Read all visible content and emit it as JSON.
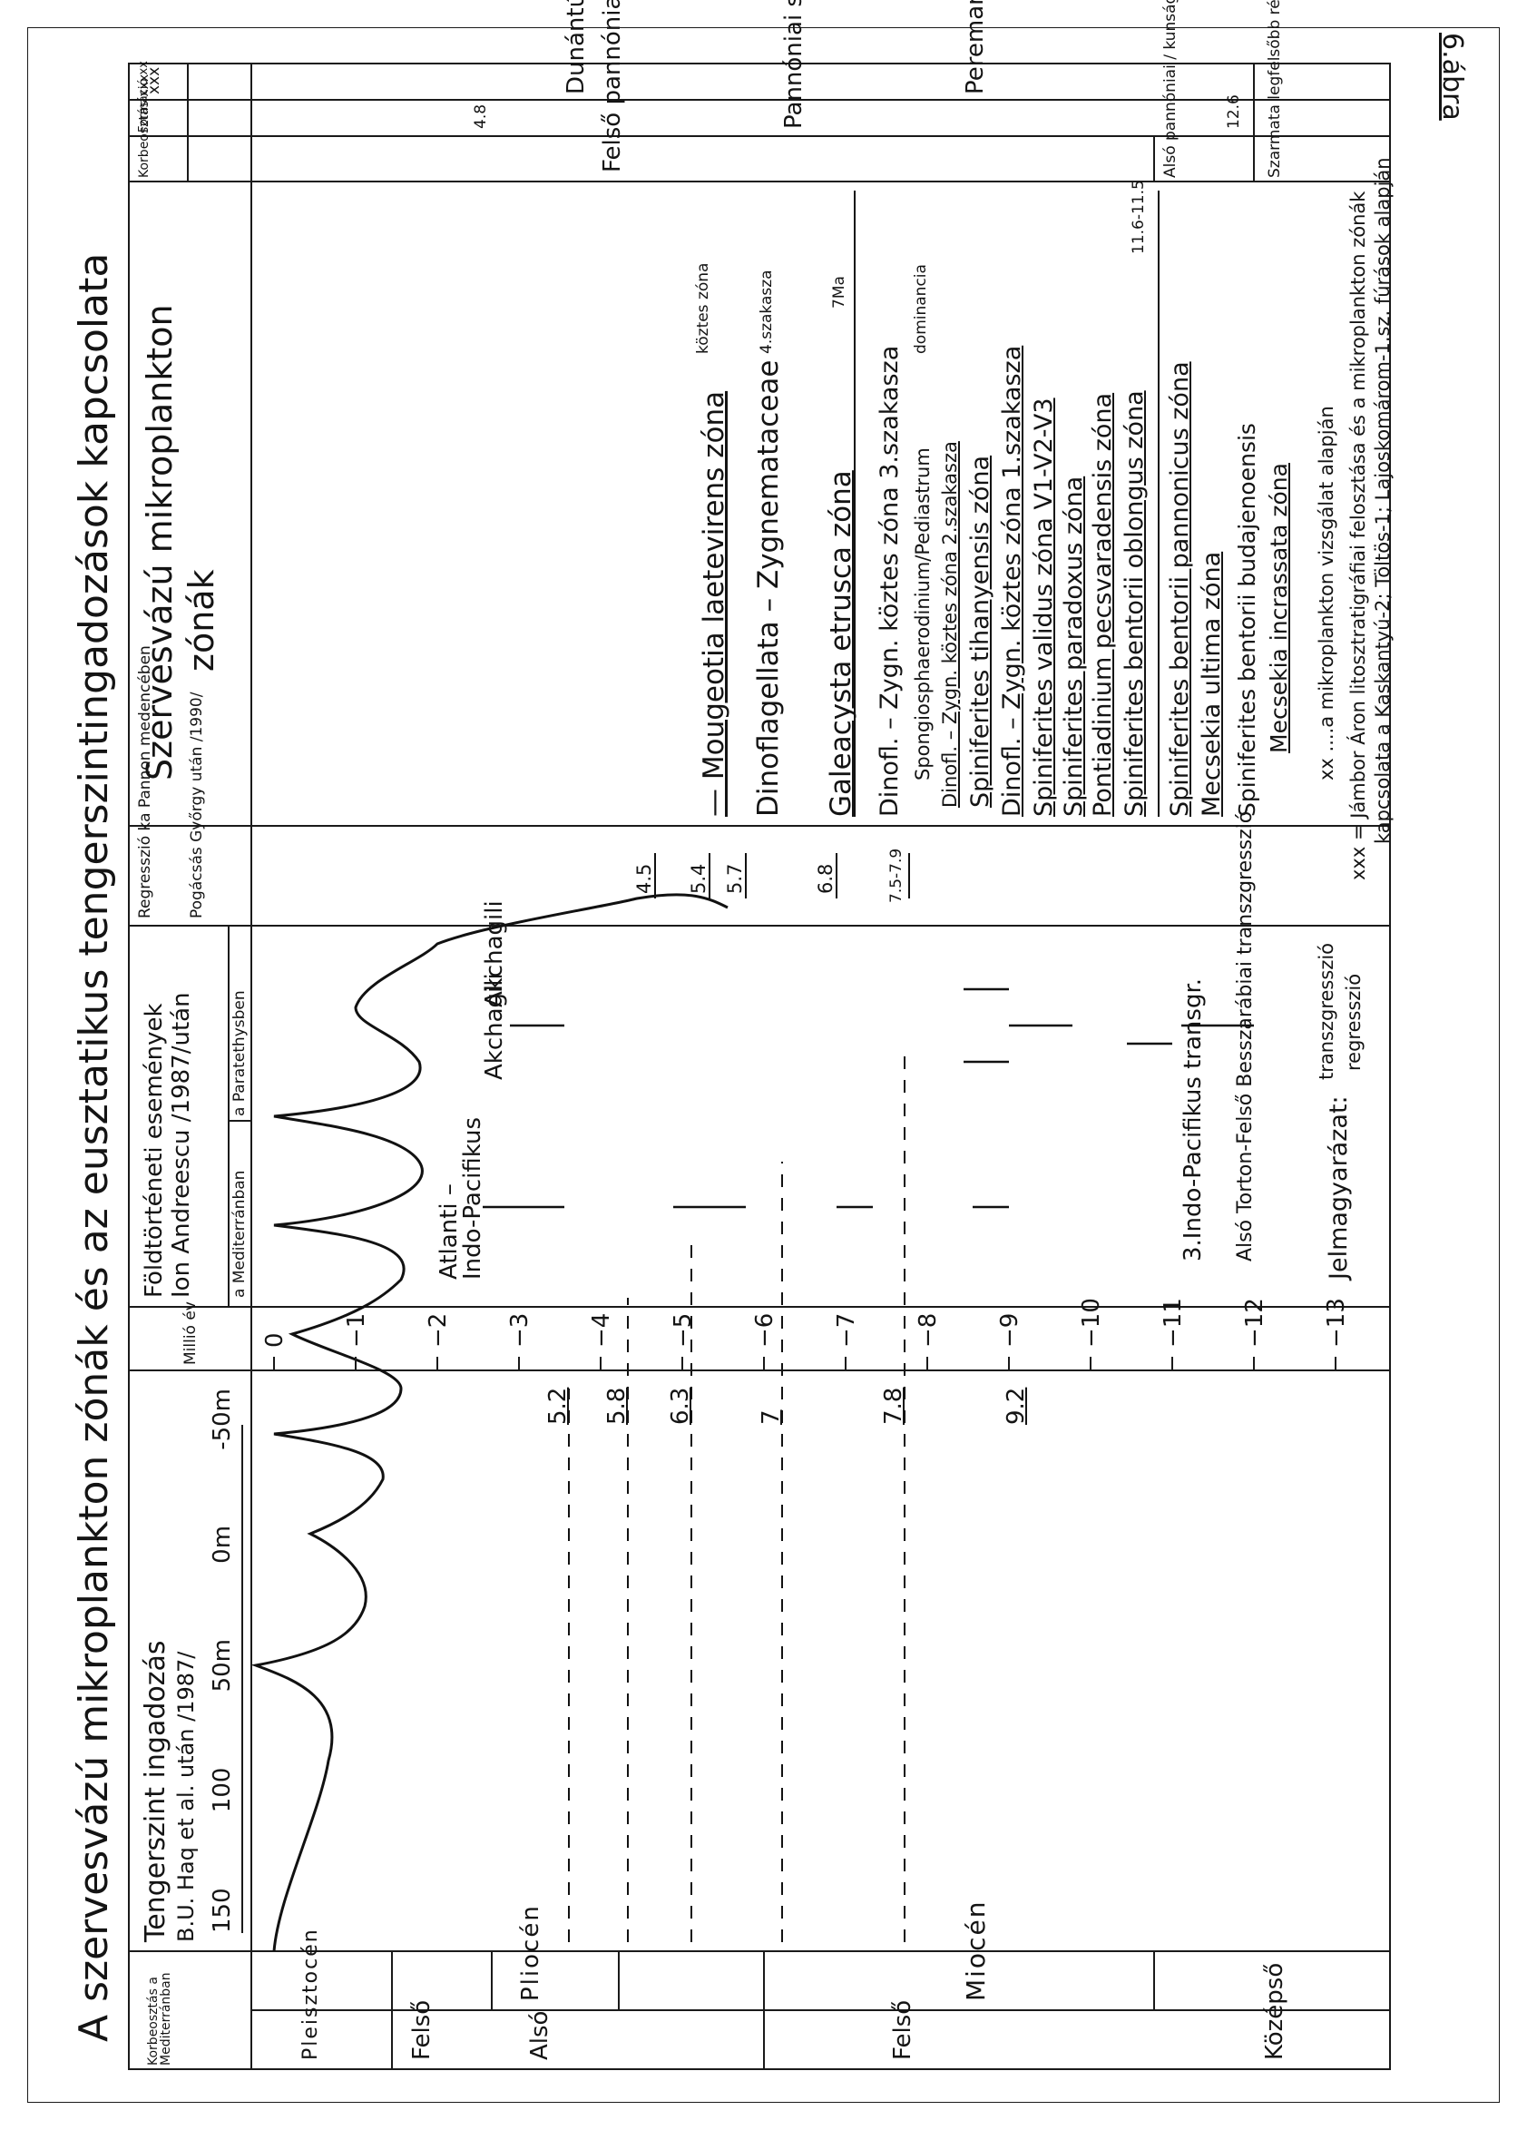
{
  "figure_label": "6.ábra",
  "title": "A szervesvázú mikroplankton zónák és az eusztatikus tengerszintingadozások kapcsolata",
  "headers": {
    "age_col": "Korbeosztás a Mediterránban",
    "sea_level": [
      "Tengerszint ingadozás",
      "B.U. Haq et al. után /1987/"
    ],
    "scale": [
      "150",
      "100",
      "50m",
      "0m",
      "-50m"
    ],
    "myr": "Millió év",
    "events_main": [
      "Földtörténeti események",
      "Ion Andreescu /1987/után"
    ],
    "events_sub": [
      "a Mediterránban",
      "a Paratethysben"
    ],
    "regr": [
      "Regresszió ka Pannon medencében",
      "Pogácsás Győrgy után /1990/"
    ],
    "zones_title": [
      "Szervesvázú mikroplankton",
      "zónák"
    ],
    "korbeosztas": "Korbeosztás xxx",
    "formacio": "Formáció xx",
    "csoport": "xxx"
  },
  "ages": {
    "pleisztocen": "Pleisztocén",
    "pliocen": "Pliocén",
    "miocen": "Miocén",
    "felso1": "Felső",
    "also": "Alsó",
    "felso2": "Felső",
    "kozepso": "Középső"
  },
  "ticks": [
    "0",
    "−1",
    "−2",
    "−3",
    "−4",
    "−5",
    "−6",
    "−7",
    "−8",
    "−9",
    "−10",
    "−11",
    "−12",
    "−13"
  ],
  "curve_labels": [
    "5.2",
    "5.8",
    "6.3",
    "7",
    "7.8",
    "9.2"
  ],
  "events": {
    "atlanti": [
      "Atlanti –",
      "Indo-Pacifikus"
    ],
    "akchagili1": "Akchagili",
    "akchagili2": "Akchagili",
    "indo3": "3.Indo-Pacifikus transgr.",
    "also_torton": "Alsó Torton-Felső Besszarábiai transzgresszió"
  },
  "regression_values": [
    "4.5",
    "5.4",
    "5.7",
    "6.8",
    "7.5-7.9"
  ],
  "zones": [
    {
      "text": "— Mougeotia  laetevirens  zóna",
      "sub": "köztes zóna"
    },
    {
      "text": "Dinoflagellata – Zygnemataceae",
      "sub": "4.szakasza"
    },
    {
      "text": "Galeacysta  etrusca  zóna",
      "sub": "7Ma"
    },
    {
      "text": "Dinofl. – Zygn. köztes zóna 3.szakasza",
      "sub": ""
    },
    {
      "text": "Spongiosphaerodinium/Pediastrum",
      "sub": "dominancia"
    },
    {
      "text": "Dinofl. – Zygn. köztes zóna 2.szakasza",
      "sub": ""
    },
    {
      "text": "Spiniferites  tihanyensis  zóna",
      "sub": ""
    },
    {
      "text": "Dinofl. – Zygn. köztes zóna 1.szakasza",
      "sub": ""
    },
    {
      "text": "Spiniferites  validus zóna V1-V2-V3",
      "sub": ""
    },
    {
      "text": "Spiniferites  paradoxus  zóna",
      "sub": ""
    },
    {
      "text": "Pontiadinium  pecsvaradensis  zóna",
      "sub": ""
    },
    {
      "text": "Spiniferites  bentorii oblongus  zóna",
      "sub": "11.6-11.5"
    },
    {
      "text": "Spiniferites  bentorii  pannonicus  zóna",
      "sub": ""
    },
    {
      "text": "Mecsekia  ultima  zóna",
      "sub": ""
    },
    {
      "text": "Spiniferites  bentorii  budajenoensis",
      "sub": ""
    },
    {
      "text": "Mecsekia  incrassata  zóna",
      "sub": ""
    }
  ],
  "strips": {
    "s1": "Felső pannóniai / Balatoni emelet",
    "s1b": "Alsó pannóniai / kunsági",
    "s1c": "Szarmata legfelsőbb része",
    "s2": "Pannóniai  sensu  lato",
    "s2a": "4.8",
    "s2b": "12.6",
    "s3a": "Dunántúli  Főcsoport",
    "s3b": "Peremartoni Főcsoport"
  },
  "legend": {
    "title": "Jelmagyarázat:",
    "transz": "transzgresszió",
    "regr": "regresszió",
    "xx": "xx ....a mikroplankton vizsgálat alapján",
    "xxx": "xxx = Jámbor Áron litosztratigráfiai felosztása és a mikroplankton zónák",
    "xxx2": "kapcsolata  a Kaskantyú-2; Töltös-1; Lajoskomárom-1.sz. fúrások alapján"
  }
}
